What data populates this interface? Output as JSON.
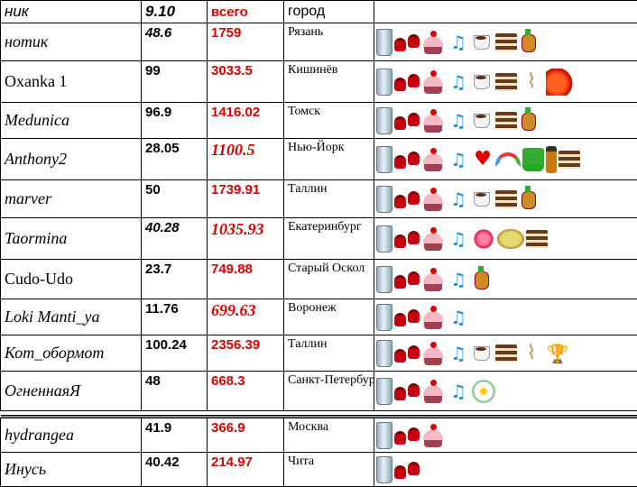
{
  "header": {
    "nick": "ник",
    "score": "9.10",
    "total": "всего",
    "city": "город"
  },
  "rows": [
    {
      "nick": "нотик",
      "score": "48.6",
      "total": "1759",
      "city": "Рязань",
      "gifts": [
        "glass-icon",
        "shoes-icon",
        "cake-icon",
        "music-icon",
        "coffee-icon",
        "dessert-icon",
        "samovar-icon"
      ]
    },
    {
      "nick": "Oxanka 1",
      "score": "99",
      "total": "3033.5",
      "city": "Кишинёв",
      "gifts": [
        "glass-icon",
        "shoes-icon",
        "cake-icon",
        "music-icon",
        "coffee-icon",
        "dessert-icon",
        "rocking-chair-icon",
        "gift-bag-icon"
      ]
    },
    {
      "nick": "Medunica",
      "score": "96.9",
      "total": "1416.02",
      "city": "Томск",
      "gifts": [
        "glass-icon",
        "shoes-icon",
        "cake-icon",
        "music-icon",
        "coffee-icon",
        "dessert-icon",
        "samovar-icon"
      ]
    },
    {
      "nick": "Anthony2",
      "score": "28.05",
      "total": "1100.5",
      "city": "Нью-Йорк",
      "gifts": [
        "glass-icon",
        "shoes-icon",
        "cake-icon",
        "music-icon",
        "heart-icon",
        "rainbow-icon",
        "hat-icon",
        "bottle-icon",
        "dessert-icon"
      ]
    },
    {
      "nick": "marver",
      "score": "50",
      "total": "1739.91",
      "city": "Таллин",
      "gifts": [
        "glass-icon",
        "shoes-icon",
        "cake-icon",
        "music-icon",
        "coffee-icon",
        "dessert-icon",
        "samovar-icon"
      ]
    },
    {
      "nick": "Taormina",
      "score": "40.28",
      "total": "1035.93",
      "city": "Екатеринбург",
      "gifts": [
        "glass-icon",
        "shoes-icon",
        "cake-icon",
        "music-icon",
        "rose-icon",
        "cymbal-icon",
        "dessert-icon"
      ]
    },
    {
      "nick": "Cudo-Udo",
      "score": "23.7",
      "total": "749.88",
      "city": "Старый Оскол",
      "gifts": [
        "glass-icon",
        "shoes-icon",
        "cake-icon",
        "music-icon",
        "samovar-icon"
      ]
    },
    {
      "nick": "Loki Manti_ya",
      "score": "11.76",
      "total": "699.63",
      "city": "Воронеж",
      "gifts": [
        "glass-icon",
        "shoes-icon",
        "cake-icon",
        "music-icon"
      ]
    },
    {
      "nick": "Кот_обормот",
      "score": "100.24",
      "total": "2356.39",
      "city": "Таллин",
      "gifts": [
        "glass-icon",
        "shoes-icon",
        "cake-icon",
        "music-icon",
        "coffee-icon",
        "dessert-icon",
        "rocking-chair-icon",
        "trophy-icon"
      ]
    },
    {
      "nick": "ОгненнаяЯ",
      "score": "48",
      "total": "668.3",
      "city": "Санкт-Петербург",
      "gifts": [
        "glass-icon",
        "shoes-icon",
        "cake-icon",
        "music-icon",
        "daisy-icon"
      ]
    }
  ],
  "rows2": [
    {
      "nick": "hydrangea",
      "score": "41.9",
      "total": "366.9",
      "city": "Москва",
      "gifts": [
        "glass-icon",
        "shoes-icon",
        "cake-icon"
      ]
    },
    {
      "nick": "Инусь",
      "score": "40.42",
      "total": "214.97",
      "city": "Чита",
      "gifts": [
        "glass-icon",
        "shoes-icon"
      ]
    }
  ]
}
